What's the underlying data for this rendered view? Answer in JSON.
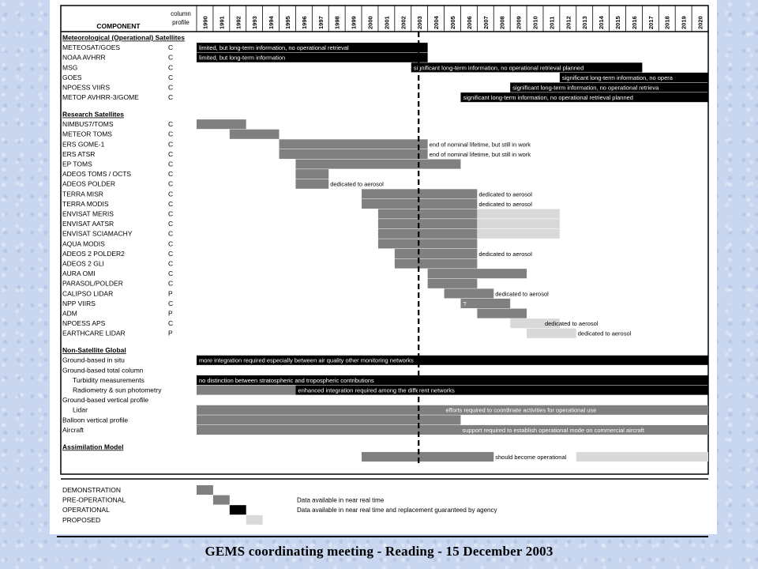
{
  "footer": "GEMS coordinating meeting - Reading - 15 December 2003",
  "colors": {
    "demonstration": "#808080",
    "pre_operational": "#808080",
    "operational": "#000000",
    "proposed": "#d9d9d9",
    "pre_operational_light": "#a9a9a9"
  },
  "chart_data": {
    "type": "table",
    "title": "",
    "header_component": "COMPONENT",
    "header_profile": "column profile",
    "years": [
      "1990",
      "1991",
      "1992",
      "1993",
      "1994",
      "1995",
      "1996",
      "1997",
      "1998",
      "1999",
      "2000",
      "2001",
      "2002",
      "2003",
      "2004",
      "2005",
      "2006",
      "2007",
      "2008",
      "2009",
      "2010",
      "2011",
      "2012",
      "2013",
      "2014",
      "2015",
      "2016",
      "2017",
      "2018",
      "2019",
      "2020"
    ],
    "current_year_marker": 2003.5,
    "rows": [
      {
        "kind": "section",
        "label": "Meteorological (Operational) Satellites"
      },
      {
        "label": "METEOSAT/GOES",
        "profile": "C",
        "bars": [
          {
            "start": 1990,
            "end": 2004,
            "status": "operational",
            "note": "limited, but long-term information, no operational retrieval",
            "note_pos": "inside"
          }
        ]
      },
      {
        "label": "NOAA AVHRR",
        "profile": "C",
        "bars": [
          {
            "start": 1990,
            "end": 2004,
            "status": "operational",
            "note": "limited, but long-term information",
            "note_pos": "inside"
          }
        ]
      },
      {
        "label": "MSG",
        "profile": "C",
        "bars": [
          {
            "start": 2003,
            "end": 2017,
            "status": "operational",
            "note": "significant long-term information, no operational retrieval planned",
            "note_pos": "inside"
          }
        ]
      },
      {
        "label": "GOES",
        "profile": "C",
        "bars": [
          {
            "start": 2012,
            "end": 2021,
            "status": "operational",
            "note": "significant long-term information, no opera",
            "note_pos": "inside"
          }
        ]
      },
      {
        "label": "NPOESS VIIRS",
        "profile": "C",
        "bars": [
          {
            "start": 2009,
            "end": 2021,
            "status": "operational",
            "note": "significant long-term information, no operational retrieva",
            "note_pos": "inside"
          }
        ]
      },
      {
        "label": "METOP AVHRR-3/GOME",
        "profile": "C",
        "bars": [
          {
            "start": 2006,
            "end": 2021,
            "status": "operational",
            "note": "significant long-term information, no operational retrieval planned",
            "note_pos": "inside"
          }
        ]
      },
      {
        "kind": "spacer"
      },
      {
        "kind": "section",
        "label": "Research Satellites"
      },
      {
        "label": "NIMBUS7/TOMS",
        "profile": "C",
        "bars": [
          {
            "start": 1990,
            "end": 1993,
            "status": "demonstration"
          }
        ]
      },
      {
        "label": "METEOR TOMS",
        "profile": "C",
        "bars": [
          {
            "start": 1992,
            "end": 1995,
            "status": "demonstration"
          }
        ]
      },
      {
        "label": "ERS GOME-1",
        "profile": "C",
        "bars": [
          {
            "start": 1995,
            "end": 2004,
            "status": "demonstration",
            "note": "end of nominal lifetime, but still in work",
            "note_pos": "after"
          }
        ]
      },
      {
        "label": "ERS ATSR",
        "profile": "C",
        "bars": [
          {
            "start": 1995,
            "end": 2004,
            "status": "demonstration",
            "note": "end of nominal lifetime, but still in work",
            "note_pos": "after"
          }
        ]
      },
      {
        "label": "EP TOMS",
        "profile": "C",
        "bars": [
          {
            "start": 1996,
            "end": 2006,
            "status": "demonstration"
          }
        ]
      },
      {
        "label": "ADEOS TOMS / OCTS",
        "profile": "C",
        "bars": [
          {
            "start": 1996,
            "end": 1998,
            "status": "demonstration"
          }
        ]
      },
      {
        "label": "ADEOS POLDER",
        "profile": "C",
        "bars": [
          {
            "start": 1996,
            "end": 1998,
            "status": "demonstration",
            "note": "dedicated to aerosol",
            "note_pos": "after"
          }
        ]
      },
      {
        "label": "TERRA MISR",
        "profile": "C",
        "bars": [
          {
            "start": 2000,
            "end": 2007,
            "status": "demonstration",
            "note": "dedicated to aerosol",
            "note_pos": "after"
          }
        ]
      },
      {
        "label": "TERRA MODIS",
        "profile": "C",
        "bars": [
          {
            "start": 2000,
            "end": 2007,
            "status": "demonstration",
            "note": "dedicated to aerosol",
            "note_pos": "after"
          }
        ]
      },
      {
        "label": "ENVISAT MERIS",
        "profile": "C",
        "bars": [
          {
            "start": 2001,
            "end": 2007,
            "status": "demonstration"
          },
          {
            "start": 2007,
            "end": 2012,
            "status": "proposed"
          }
        ]
      },
      {
        "label": "ENVISAT AATSR",
        "profile": "C",
        "bars": [
          {
            "start": 2001,
            "end": 2007,
            "status": "demonstration"
          },
          {
            "start": 2007,
            "end": 2012,
            "status": "proposed"
          }
        ]
      },
      {
        "label": "ENVISAT SCIAMACHY",
        "profile": "C",
        "bars": [
          {
            "start": 2001,
            "end": 2007,
            "status": "demonstration"
          },
          {
            "start": 2007,
            "end": 2012,
            "status": "proposed"
          }
        ]
      },
      {
        "label": "AQUA MODIS",
        "profile": "C",
        "bars": [
          {
            "start": 2001,
            "end": 2007,
            "status": "demonstration"
          }
        ]
      },
      {
        "label": "ADEOS 2 POLDER2",
        "profile": "C",
        "bars": [
          {
            "start": 2002,
            "end": 2007,
            "status": "demonstration",
            "note": "dedicated to aerosol",
            "note_pos": "after"
          }
        ]
      },
      {
        "label": "ADEOS 2 GLI",
        "profile": "C",
        "bars": [
          {
            "start": 2002,
            "end": 2007,
            "status": "demonstration"
          }
        ]
      },
      {
        "label": "AURA OMI",
        "profile": "C",
        "bars": [
          {
            "start": 2004,
            "end": 2010,
            "status": "demonstration"
          }
        ]
      },
      {
        "label": "PARASOL/POLDER",
        "profile": "C",
        "bars": [
          {
            "start": 2004,
            "end": 2007,
            "status": "demonstration"
          }
        ]
      },
      {
        "label": "CALIPSO LIDAR",
        "profile": "P",
        "bars": [
          {
            "start": 2005,
            "end": 2008,
            "status": "demonstration",
            "note": "dedicated to aerosol",
            "note_pos": "after"
          }
        ]
      },
      {
        "label": "NPP VIIRS",
        "profile": "C",
        "bars": [
          {
            "start": 2006,
            "end": 2009,
            "status": "pre_operational",
            "note": "?",
            "note_pos": "inside"
          }
        ]
      },
      {
        "label": "ADM",
        "profile": "P",
        "bars": [
          {
            "start": 2007,
            "end": 2010,
            "status": "demonstration"
          }
        ]
      },
      {
        "label": "NPOESS APS",
        "profile": "C",
        "bars": [
          {
            "start": 2009,
            "end": 2012,
            "status": "proposed",
            "note": "dedicated to aerosol",
            "note_pos": "after_from_2011"
          }
        ]
      },
      {
        "label": "EARTHCARE LIDAR",
        "profile": "P",
        "bars": [
          {
            "start": 2010,
            "end": 2013,
            "status": "proposed",
            "note": "dedicated to aerosol",
            "note_pos": "after"
          }
        ]
      },
      {
        "kind": "spacer"
      },
      {
        "kind": "section",
        "label": "Non-Satellite Global"
      },
      {
        "label": "Ground-based in situ",
        "profile": "",
        "bars": [
          {
            "start": 1990,
            "end": 2021,
            "status": "operational",
            "note": "more integration required especially between air quality other monitoring networks",
            "note_pos": "inside"
          }
        ]
      },
      {
        "label": "Ground-based total column",
        "profile": "",
        "bars": []
      },
      {
        "label": "Turbidity measurements",
        "indent": true,
        "profile": "",
        "bars": [
          {
            "start": 1990,
            "end": 2021,
            "status": "operational",
            "note": "no distinction between stratospheric and tropospheric contributions",
            "note_pos": "inside"
          }
        ]
      },
      {
        "label": "Radiometry & sun photometry",
        "indent": true,
        "profile": "",
        "bars": [
          {
            "start": 1990,
            "end": 1996,
            "status": "demonstration"
          },
          {
            "start": 1996,
            "end": 2021,
            "status": "operational",
            "note": "enhanced integration required among the different networks",
            "note_pos": "inside"
          }
        ]
      },
      {
        "label": "Ground-based vertical profile",
        "profile": "",
        "bars": []
      },
      {
        "label": "Lidar",
        "indent": true,
        "profile": "",
        "bars": [
          {
            "start": 1990,
            "end": 2021,
            "status": "demonstration",
            "note": "efforts required to coordinate activities for operational use",
            "note_pos": "inside_at_2005"
          }
        ]
      },
      {
        "label": "Balloon vertical profile",
        "profile": "",
        "bars": [
          {
            "start": 1990,
            "end": 2006,
            "status": "demonstration",
            "note": "will require continuous support",
            "note_pos": "inside_at_2006"
          }
        ]
      },
      {
        "label": "Aircraft",
        "profile": "",
        "bars": [
          {
            "start": 1990,
            "end": 2021,
            "status": "demonstration",
            "note": "support required to establish operational mode on commercial aircraft",
            "note_pos": "inside_at_2006"
          }
        ]
      },
      {
        "kind": "spacer"
      },
      {
        "kind": "section",
        "label": "Assimilation Model"
      },
      {
        "label": "",
        "profile": "",
        "bars": [
          {
            "start": 2000,
            "end": 2008,
            "status": "demonstration",
            "note": "should become operational",
            "note_pos": "after"
          },
          {
            "start": 2013,
            "end": 2021,
            "status": "proposed"
          }
        ]
      }
    ],
    "legend": [
      {
        "label": "DEMONSTRATION",
        "status": "demonstration",
        "start": 1990,
        "end": 1991,
        "note": ""
      },
      {
        "label": "PRE-OPERATIONAL",
        "status": "pre_operational",
        "start": 1991,
        "end": 1992,
        "note": "Data available in near real time"
      },
      {
        "label": "OPERATIONAL",
        "status": "operational",
        "start": 1992,
        "end": 1993,
        "note": "Data available in near real time and replacement guaranteed by agency"
      },
      {
        "label": "PROPOSED",
        "status": "proposed",
        "start": 1993,
        "end": 1994,
        "note": ""
      }
    ]
  }
}
